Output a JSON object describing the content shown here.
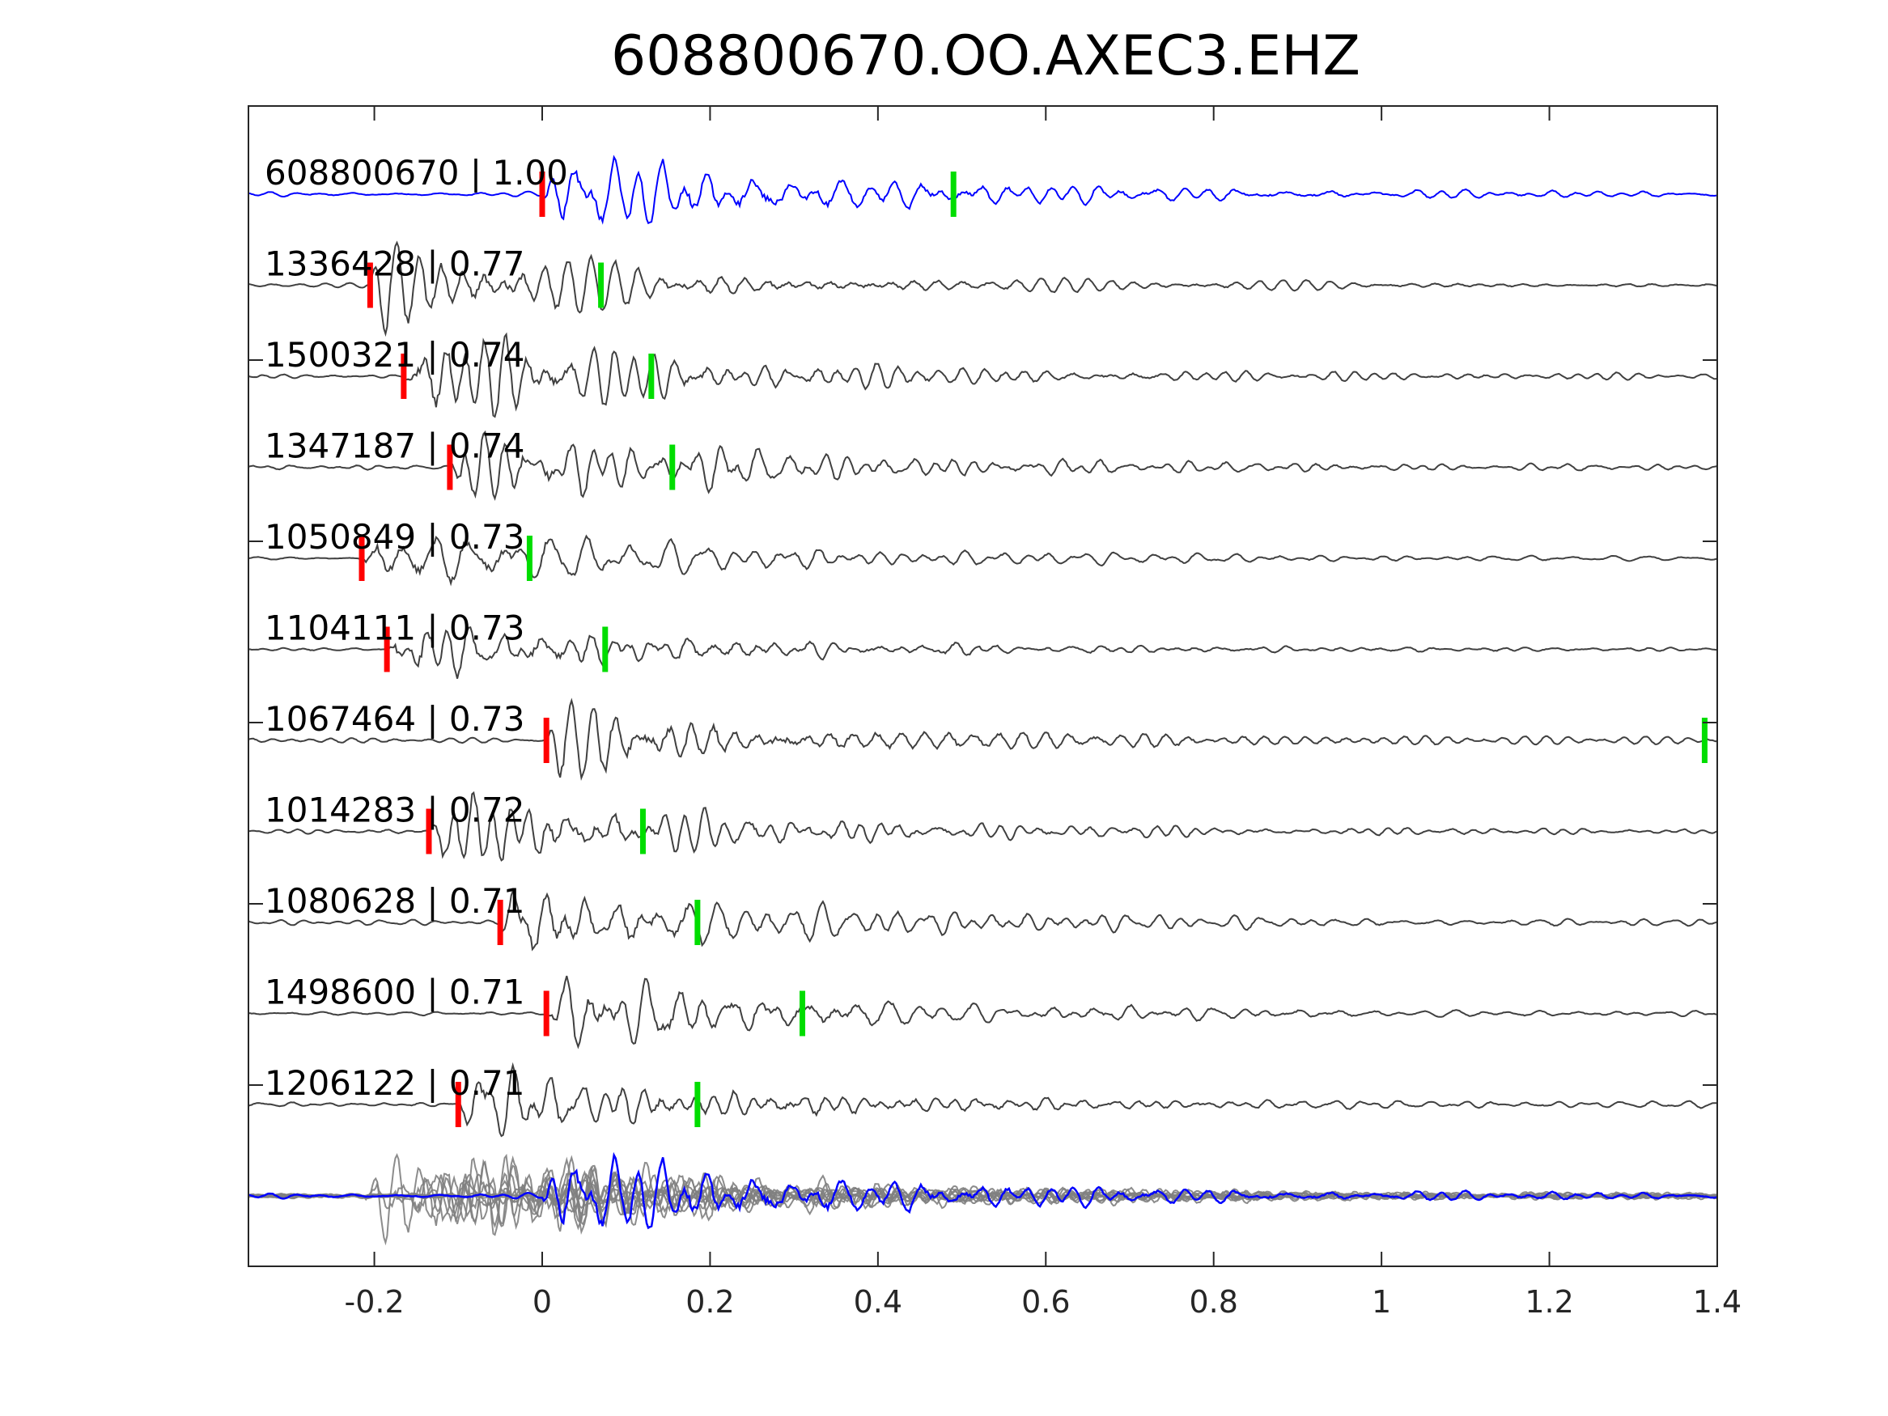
{
  "chart_data": {
    "type": "line",
    "title": "608800670.OO.AXEC3.EHZ",
    "xlabel": "",
    "ylabel": "",
    "xlim": [
      -0.35,
      1.4
    ],
    "x_ticks": [
      "-0.2",
      "0",
      "0.2",
      "0.4",
      "0.6",
      "0.8",
      "1",
      "1.2",
      "1.4"
    ],
    "x_tick_values": [
      -0.2,
      0,
      0.2,
      0.4,
      0.6,
      0.8,
      1,
      1.2,
      1.4
    ],
    "grid": false,
    "colors": {
      "template": "#0000ff",
      "neighbor": "#404040",
      "overlay": "#808080",
      "p_pick": "#ff0000",
      "s_pick": "#00dd00",
      "axis": "#262626"
    },
    "traces": [
      {
        "label": "608800670 | 1.00",
        "event_id": "608800670",
        "cc": 1.0,
        "p_pick": 0.0,
        "s_pick": 0.49,
        "onset": 0.0,
        "amp": 1.0,
        "kind": "template"
      },
      {
        "label": "1336428 | 0.77",
        "event_id": "1336428",
        "cc": 0.77,
        "p_pick": -0.205,
        "s_pick": 0.07,
        "onset": -0.205,
        "amp": 0.9,
        "kind": "neighbor"
      },
      {
        "label": "1500321 | 0.74",
        "event_id": "1500321",
        "cc": 0.74,
        "p_pick": -0.165,
        "s_pick": 0.13,
        "onset": -0.165,
        "amp": 1.0,
        "kind": "neighbor"
      },
      {
        "label": "1347187 | 0.74",
        "event_id": "1347187",
        "cc": 0.74,
        "p_pick": -0.11,
        "s_pick": 0.155,
        "onset": -0.11,
        "amp": 0.95,
        "kind": "neighbor"
      },
      {
        "label": "1050849 | 0.73",
        "event_id": "1050849",
        "cc": 0.73,
        "p_pick": -0.215,
        "s_pick": -0.015,
        "onset": -0.215,
        "amp": 0.8,
        "kind": "neighbor"
      },
      {
        "label": "1104111 | 0.73",
        "event_id": "1104111",
        "cc": 0.73,
        "p_pick": -0.185,
        "s_pick": 0.075,
        "onset": -0.185,
        "amp": 0.85,
        "kind": "neighbor"
      },
      {
        "label": "1067464 | 0.73",
        "event_id": "1067464",
        "cc": 0.73,
        "p_pick": 0.005,
        "s_pick": 1.385,
        "onset": 0.005,
        "amp": 0.95,
        "kind": "neighbor"
      },
      {
        "label": "1014283 | 0.72",
        "event_id": "1014283",
        "cc": 0.72,
        "p_pick": -0.135,
        "s_pick": 0.12,
        "onset": -0.135,
        "amp": 0.9,
        "kind": "neighbor"
      },
      {
        "label": "1080628 | 0.71",
        "event_id": "1080628",
        "cc": 0.71,
        "p_pick": -0.05,
        "s_pick": 0.185,
        "onset": -0.05,
        "amp": 0.9,
        "kind": "neighbor"
      },
      {
        "label": "1498600 | 0.71",
        "event_id": "1498600",
        "cc": 0.71,
        "p_pick": 0.005,
        "s_pick": 0.31,
        "onset": 0.005,
        "amp": 0.85,
        "kind": "neighbor"
      },
      {
        "label": "1206122 | 0.71",
        "event_id": "1206122",
        "cc": 0.71,
        "p_pick": -0.1,
        "s_pick": 0.185,
        "onset": -0.1,
        "amp": 0.9,
        "kind": "neighbor"
      }
    ],
    "overlay": {
      "kind": "stack",
      "amp": 1.0
    }
  }
}
